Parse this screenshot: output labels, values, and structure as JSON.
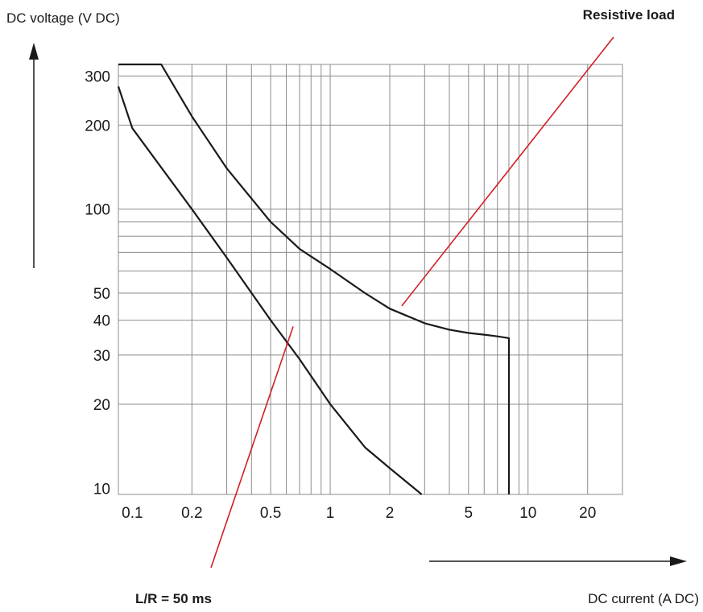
{
  "chart_data": {
    "type": "line",
    "xlabel": "DC current (A DC)",
    "ylabel": "DC voltage (V DC)",
    "x_scale": "log",
    "y_scale": "log",
    "xlim": [
      0.085,
      30
    ],
    "ylim": [
      9.5,
      330
    ],
    "grid": true,
    "x_ticks": [
      {
        "value": 0.1,
        "label": "0.1"
      },
      {
        "value": 0.2,
        "label": "0.2"
      },
      {
        "value": 0.5,
        "label": "0.5"
      },
      {
        "value": 1,
        "label": "1"
      },
      {
        "value": 2,
        "label": "2"
      },
      {
        "value": 5,
        "label": "5"
      },
      {
        "value": 10,
        "label": "10"
      },
      {
        "value": 20,
        "label": "20"
      }
    ],
    "y_ticks": [
      {
        "value": 10,
        "label": "10"
      },
      {
        "value": 20,
        "label": "20"
      },
      {
        "value": 30,
        "label": "30"
      },
      {
        "value": 40,
        "label": "40"
      },
      {
        "value": 50,
        "label": "50"
      },
      {
        "value": 100,
        "label": "100"
      },
      {
        "value": 200,
        "label": "200"
      },
      {
        "value": 300,
        "label": "300"
      }
    ],
    "x_grid": [
      0.2,
      0.3,
      0.4,
      0.5,
      0.6,
      0.7,
      0.8,
      0.9,
      1,
      2,
      3,
      4,
      5,
      6,
      7,
      8,
      9,
      10,
      20
    ],
    "y_grid": [
      20,
      30,
      40,
      50,
      60,
      70,
      80,
      90,
      100,
      200,
      300
    ],
    "series": [
      {
        "name": "Resistive load",
        "color": "#1a1a1a",
        "x": [
          0.085,
          0.14,
          0.2,
          0.3,
          0.5,
          0.7,
          1,
          1.5,
          2,
          3,
          4,
          5,
          6,
          7,
          8,
          8,
          8
        ],
        "y": [
          330,
          330,
          215,
          140,
          90,
          72,
          61,
          50,
          44,
          39,
          37,
          36,
          35.5,
          35,
          34.5,
          20,
          9.5
        ]
      },
      {
        "name": "L/R = 50 ms",
        "color": "#1a1a1a",
        "x": [
          0.085,
          0.1,
          0.2,
          0.3,
          0.5,
          0.7,
          1,
          1.5,
          2,
          2.9
        ],
        "y": [
          275,
          195,
          100,
          67,
          40,
          29,
          20,
          14,
          11.8,
          9.5
        ]
      }
    ],
    "annotations": [
      {
        "text": "Resistive load",
        "color": "#d11f26",
        "leader_to": {
          "x": 2.3,
          "y": 45
        }
      },
      {
        "text": "L/R = 50 ms",
        "color": "#d11f26",
        "leader_to": {
          "x": 0.65,
          "y": 38
        }
      }
    ]
  }
}
